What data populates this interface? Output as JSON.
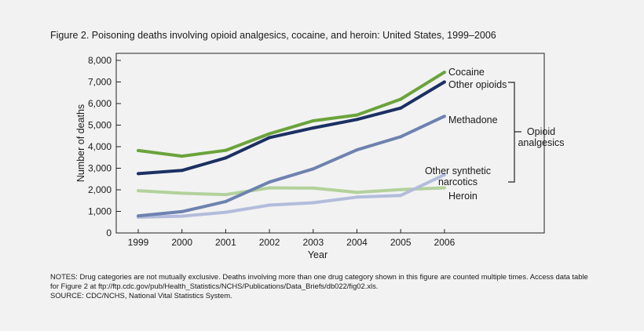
{
  "figure": {
    "title": "Figure 2. Poisoning deaths involving opioid analgesics, cocaine, and heroin: United States, 1999–2006",
    "notes": "NOTES: Drug categories are not mutually exclusive. Deaths involving more than one drug category shown in this figure are counted multiple times. Access data table for Figure 2 at ftp://ftp.cdc.gov/pub/Health_Statistics/NCHS/Publications/Data_Briefs/db022/fig02.xls.",
    "source": "SOURCE: CDC/NCHS, National Vital Statistics System."
  },
  "chart_data": {
    "type": "line",
    "title": "Figure 2. Poisoning deaths involving opioid analgesics, cocaine, and heroin: United States, 1999–2006",
    "xlabel": "Year",
    "ylabel": "Number of deaths",
    "x": [
      "1999",
      "2000",
      "2001",
      "2002",
      "2003",
      "2004",
      "2005",
      "2006"
    ],
    "ylim": [
      0,
      8000
    ],
    "yticks": [
      "0",
      "1,000",
      "2,000",
      "3,000",
      "4,000",
      "5,000",
      "6,000",
      "7,000",
      "8,000"
    ],
    "grid": false,
    "bracket_label": [
      "Opioid",
      "analgesics"
    ],
    "series": [
      {
        "name": "Heroin",
        "label_lines": [
          "Heroin"
        ],
        "color": "#b3d19b",
        "values": [
          1960,
          1840,
          1780,
          2090,
          2080,
          1880,
          2010,
          2090
        ]
      },
      {
        "name": "Other synthetic narcotics",
        "label_lines": [
          "Other synthetic",
          "narcotics"
        ],
        "color": "#b3bcdc",
        "values": [
          730,
          780,
          960,
          1290,
          1400,
          1660,
          1740,
          2700
        ]
      },
      {
        "name": "Methadone",
        "label_lines": [
          "Methadone"
        ],
        "color": "#6e82af",
        "values": [
          790,
          990,
          1460,
          2360,
          2970,
          3850,
          4460,
          5410
        ]
      },
      {
        "name": "Other opioids",
        "label_lines": [
          "Other opioids"
        ],
        "color": "#1b3063",
        "values": [
          2750,
          2900,
          3480,
          4420,
          4870,
          5260,
          5790,
          7000
        ]
      },
      {
        "name": "Cocaine",
        "label_lines": [
          "Cocaine"
        ],
        "color": "#6ba33b",
        "values": [
          3820,
          3560,
          3830,
          4600,
          5200,
          5470,
          6200,
          7450
        ]
      }
    ]
  }
}
